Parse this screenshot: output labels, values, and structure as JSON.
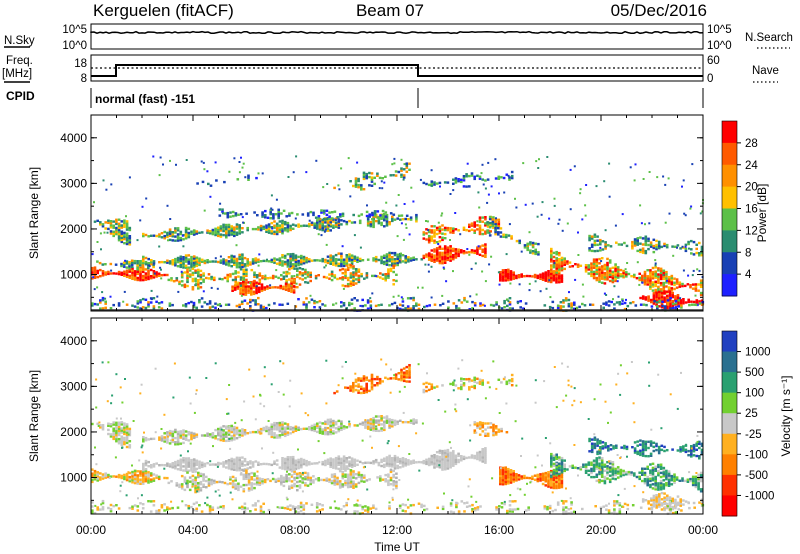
{
  "header": {
    "station": "Kerguelen (fitACF)",
    "beam": "Beam 07",
    "date": "05/Dec/2016"
  },
  "top_panels": {
    "noise": {
      "left_label": "N.Sky",
      "left_ticks": [
        "10^5",
        "10^0"
      ],
      "right_label": "N.Search",
      "right_ticks": [
        "10^5",
        "10^0"
      ]
    },
    "freq": {
      "left_label_1": "Freq.",
      "left_label_2": "[MHz]",
      "left_ticks": [
        "18",
        "8"
      ],
      "right_label": "Nave",
      "right_ticks": [
        "60",
        "0"
      ]
    },
    "cpid": {
      "label": "CPID",
      "mode": "normal (fast) -151"
    }
  },
  "chart_data": [
    {
      "type": "heatmap",
      "quantity": "power",
      "ylabel": "Slant Range [km]",
      "ylim": [
        200,
        4500
      ],
      "y_ticks": [
        1000,
        2000,
        3000,
        4000
      ],
      "x_ticks": [
        "00:00",
        "04:00",
        "08:00",
        "12:00",
        "16:00",
        "20:00",
        "00:00"
      ],
      "colorbar": {
        "label": "Power [dB]",
        "ticks": [
          "28",
          "24",
          "20",
          "16",
          "12",
          "8",
          "4"
        ],
        "colors": [
          "#ff0000",
          "#ff5a00",
          "#ff9000",
          "#ffc000",
          "#5cc048",
          "#2a8c70",
          "#1840b4",
          "#1e20ff"
        ]
      }
    },
    {
      "type": "heatmap",
      "quantity": "velocity",
      "ylabel": "Slant Range [km]",
      "ylim": [
        200,
        4500
      ],
      "y_ticks": [
        1000,
        2000,
        3000,
        4000
      ],
      "x_ticks": [
        "00:00",
        "04:00",
        "08:00",
        "12:00",
        "16:00",
        "20:00",
        "00:00"
      ],
      "xlabel": "Time UT",
      "colorbar": {
        "label": "Velocity [m s⁻¹]",
        "ticks": [
          "1000",
          "500",
          "100",
          "25",
          "-25",
          "-100",
          "-500",
          "-1000"
        ],
        "colors": [
          "#2040c0",
          "#2a7090",
          "#2aa070",
          "#72d030",
          "#c8c8c8",
          "#ffb020",
          "#ff8000",
          "#ff3000",
          "#ff0000"
        ]
      }
    }
  ]
}
